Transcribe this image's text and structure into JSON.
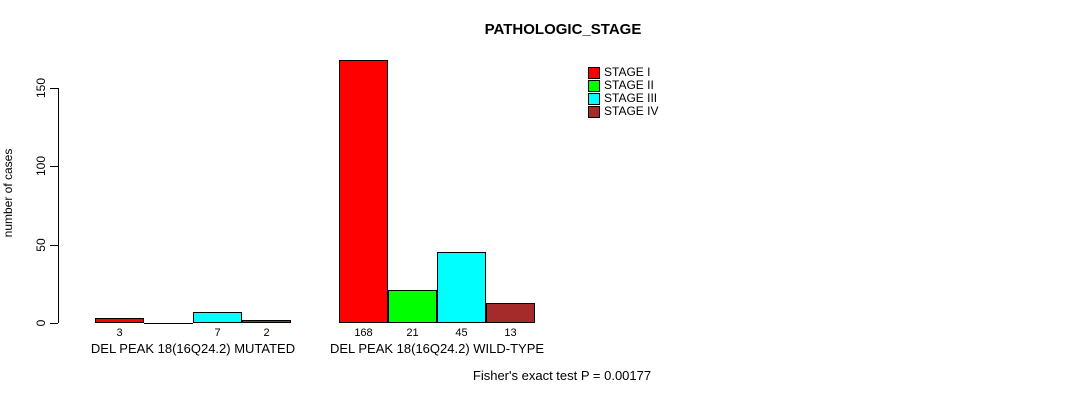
{
  "title": "PATHOLOGIC_STAGE",
  "footer": "Fisher's exact test P = 0.00177",
  "stats": {
    "test_name": "Fisher's exact test",
    "p_value": "0.00177"
  },
  "y_axis": {
    "label": "number of cases",
    "tick_labels": [
      "0",
      "50",
      "100",
      "150"
    ]
  },
  "legend": {
    "position": "top-right",
    "items": [
      {
        "label": "STAGE I",
        "color": "#FF0000"
      },
      {
        "label": "STAGE II",
        "color": "#00FF00"
      },
      {
        "label": "STAGE III",
        "color": "#00FFFF"
      },
      {
        "label": "STAGE IV",
        "color": "#A52A2A"
      }
    ]
  },
  "chart_data": {
    "type": "bar",
    "title": "PATHOLOGIC_STAGE",
    "xlabel": "",
    "ylabel": "number of cases",
    "ylim": [
      0,
      168
    ],
    "yticks": [
      0,
      50,
      100,
      150
    ],
    "grid": false,
    "legend_position": "top-right",
    "categories": [
      "DEL PEAK 18(16Q24.2) MUTATED",
      "DEL PEAK 18(16Q24.2) WILD-TYPE"
    ],
    "series": [
      {
        "name": "STAGE I",
        "color": "#FF0000",
        "values": [
          3,
          168
        ]
      },
      {
        "name": "STAGE II",
        "color": "#00FF00",
        "values": [
          0,
          21
        ]
      },
      {
        "name": "STAGE III",
        "color": "#00FFFF",
        "values": [
          7,
          45
        ]
      },
      {
        "name": "STAGE IV",
        "color": "#A52A2A",
        "values": [
          2,
          13
        ]
      }
    ],
    "value_labels": [
      [
        "3",
        "",
        "7",
        "2"
      ],
      [
        "168",
        "21",
        "45",
        "13"
      ]
    ],
    "annotation": "Fisher's exact test P = 0.00177"
  }
}
